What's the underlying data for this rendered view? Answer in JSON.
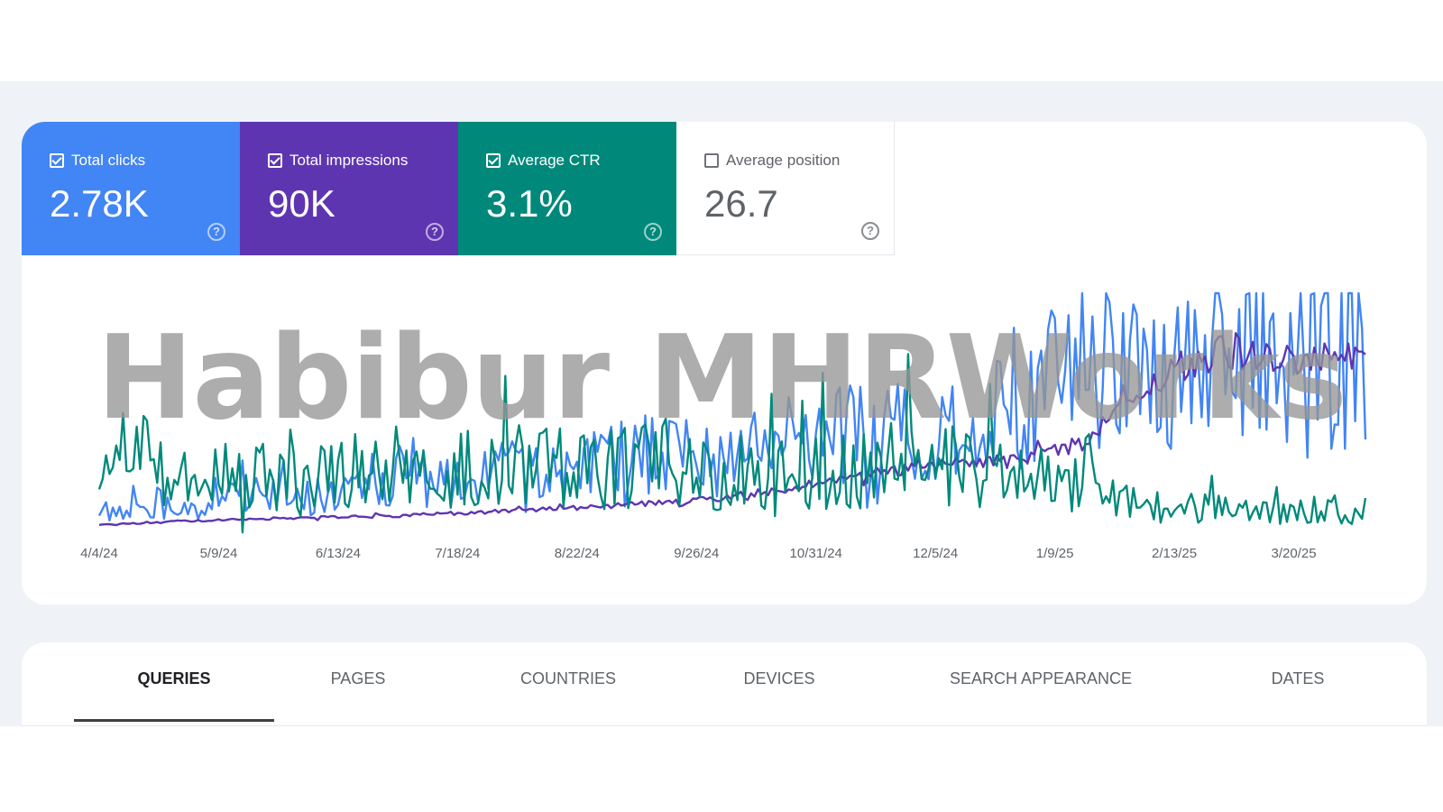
{
  "metrics": {
    "clicks": {
      "label": "Total clicks",
      "value": "2.78K",
      "checked": true,
      "color": "#4285f4"
    },
    "impressions": {
      "label": "Total impressions",
      "value": "90K",
      "checked": true,
      "color": "#5e35b1"
    },
    "ctr": {
      "label": "Average CTR",
      "value": "3.1%",
      "checked": true,
      "color": "#00897b"
    },
    "position": {
      "label": "Average position",
      "value": "26.7",
      "checked": false,
      "color": "#ffffff"
    }
  },
  "help_glyph": "?",
  "watermark": "Habibur MHRWorks",
  "chart_data": {
    "type": "line",
    "title": "",
    "xlabel": "",
    "ylabel": "",
    "x_ticks": [
      "4/4/24",
      "5/9/24",
      "6/13/24",
      "7/18/24",
      "8/22/24",
      "9/26/24",
      "10/31/24",
      "12/5/24",
      "1/9/25",
      "2/13/25",
      "3/20/25"
    ],
    "x_range": [
      "4/4/24",
      "4/10/25"
    ],
    "grid": false,
    "series": [
      {
        "key": "clicks",
        "color": "#4285f4",
        "anchors": [
          [
            0,
            8
          ],
          [
            15,
            12
          ],
          [
            30,
            10
          ],
          [
            45,
            16
          ],
          [
            60,
            14
          ],
          [
            75,
            18
          ],
          [
            90,
            22
          ],
          [
            105,
            20
          ],
          [
            120,
            26
          ],
          [
            135,
            24
          ],
          [
            150,
            30
          ],
          [
            165,
            34
          ],
          [
            180,
            28
          ],
          [
            195,
            36
          ],
          [
            210,
            40
          ],
          [
            225,
            44
          ],
          [
            240,
            42
          ],
          [
            255,
            48
          ],
          [
            270,
            50
          ],
          [
            285,
            70
          ],
          [
            300,
            74
          ],
          [
            315,
            62
          ],
          [
            330,
            80
          ],
          [
            345,
            78
          ],
          [
            360,
            72
          ],
          [
            371,
            70
          ]
        ],
        "amplitude": 0.32
      },
      {
        "key": "impressions",
        "color": "#5e35b1",
        "anchors": [
          [
            0,
            3
          ],
          [
            30,
            5
          ],
          [
            60,
            6
          ],
          [
            90,
            7
          ],
          [
            120,
            9
          ],
          [
            150,
            11
          ],
          [
            180,
            14
          ],
          [
            200,
            18
          ],
          [
            225,
            24
          ],
          [
            250,
            30
          ],
          [
            270,
            30
          ],
          [
            290,
            38
          ],
          [
            300,
            58
          ],
          [
            315,
            68
          ],
          [
            330,
            76
          ],
          [
            345,
            72
          ],
          [
            360,
            74
          ],
          [
            371,
            72
          ]
        ],
        "amplitude": 0.06
      },
      {
        "key": "ctr",
        "color": "#00897b",
        "anchors": [
          [
            0,
            30
          ],
          [
            10,
            34
          ],
          [
            20,
            22
          ],
          [
            40,
            26
          ],
          [
            60,
            24
          ],
          [
            80,
            28
          ],
          [
            100,
            26
          ],
          [
            120,
            30
          ],
          [
            140,
            26
          ],
          [
            160,
            28
          ],
          [
            180,
            24
          ],
          [
            200,
            28
          ],
          [
            220,
            26
          ],
          [
            240,
            30
          ],
          [
            260,
            26
          ],
          [
            280,
            22
          ],
          [
            290,
            20
          ],
          [
            300,
            12
          ],
          [
            320,
            10
          ],
          [
            340,
            9
          ],
          [
            360,
            10
          ],
          [
            371,
            9
          ]
        ],
        "amplitude": 0.4
      }
    ]
  },
  "tabs": [
    {
      "label": "QUERIES",
      "active": true
    },
    {
      "label": "PAGES",
      "active": false
    },
    {
      "label": "COUNTRIES",
      "active": false
    },
    {
      "label": "DEVICES",
      "active": false
    },
    {
      "label": "SEARCH APPEARANCE",
      "active": false
    },
    {
      "label": "DATES",
      "active": false
    }
  ]
}
